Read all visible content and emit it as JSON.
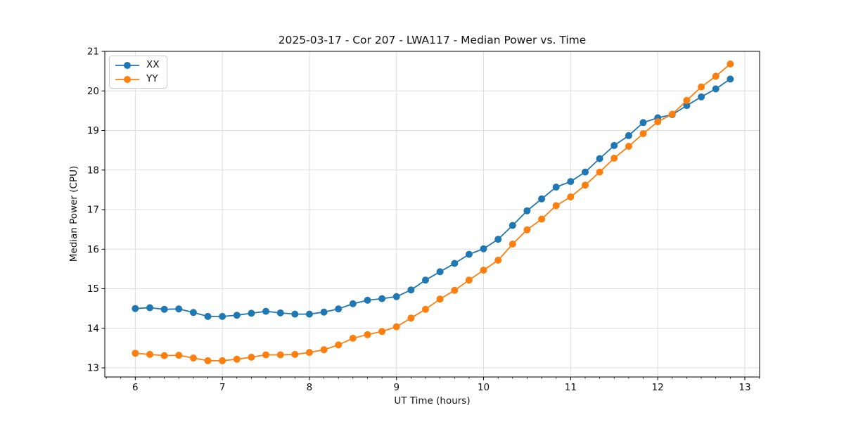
{
  "chart_data": {
    "type": "line",
    "title": "2025-03-17 - Cor 207 - LWA117 - Median Power vs. Time",
    "xlabel": "UT Time (hours)",
    "ylabel": "Median Power (CPU)",
    "xlim": [
      5.65,
      13.17
    ],
    "ylim": [
      12.77,
      21.0
    ],
    "x_ticks": [
      6,
      7,
      8,
      9,
      10,
      11,
      12,
      13
    ],
    "y_ticks": [
      13,
      14,
      15,
      16,
      17,
      18,
      19,
      20,
      21
    ],
    "x_minor_tick_step_hours": 0.1667,
    "grid": true,
    "legend_position": "upper-left",
    "x": [
      6.0,
      6.167,
      6.333,
      6.5,
      6.667,
      6.833,
      7.0,
      7.167,
      7.333,
      7.5,
      7.667,
      7.833,
      8.0,
      8.167,
      8.333,
      8.5,
      8.667,
      8.833,
      9.0,
      9.167,
      9.333,
      9.5,
      9.667,
      9.833,
      10.0,
      10.167,
      10.333,
      10.5,
      10.667,
      10.833,
      11.0,
      11.167,
      11.333,
      11.5,
      11.667,
      11.833,
      12.0,
      12.167,
      12.333,
      12.5,
      12.667,
      12.833
    ],
    "series": [
      {
        "name": "XX",
        "color": "#1f77b4",
        "values": [
          14.5,
          14.52,
          14.48,
          14.49,
          14.4,
          14.3,
          14.3,
          14.33,
          14.38,
          14.43,
          14.39,
          14.36,
          14.36,
          14.41,
          14.49,
          14.62,
          14.71,
          14.75,
          14.8,
          14.97,
          15.22,
          15.43,
          15.64,
          15.87,
          16.01,
          16.25,
          16.6,
          16.97,
          17.27,
          17.57,
          17.71,
          17.95,
          18.29,
          18.62,
          18.87,
          19.2,
          19.32,
          19.4,
          19.63,
          19.85,
          20.05,
          20.3
        ]
      },
      {
        "name": "YY",
        "color": "#ff7f0e",
        "values": [
          13.37,
          13.34,
          13.31,
          13.32,
          13.25,
          13.18,
          13.18,
          13.22,
          13.27,
          13.33,
          13.33,
          13.34,
          13.39,
          13.46,
          13.58,
          13.75,
          13.84,
          13.92,
          14.04,
          14.26,
          14.48,
          14.74,
          14.96,
          15.22,
          15.47,
          15.72,
          16.13,
          16.49,
          16.76,
          17.1,
          17.32,
          17.62,
          17.95,
          18.3,
          18.6,
          18.92,
          19.22,
          19.41,
          19.76,
          20.1,
          20.37,
          20.68
        ]
      }
    ],
    "styles": {
      "grid_color": "#dcdcdc",
      "spine_color": "#000000",
      "marker_radius": 5,
      "line_width": 1.8
    }
  }
}
